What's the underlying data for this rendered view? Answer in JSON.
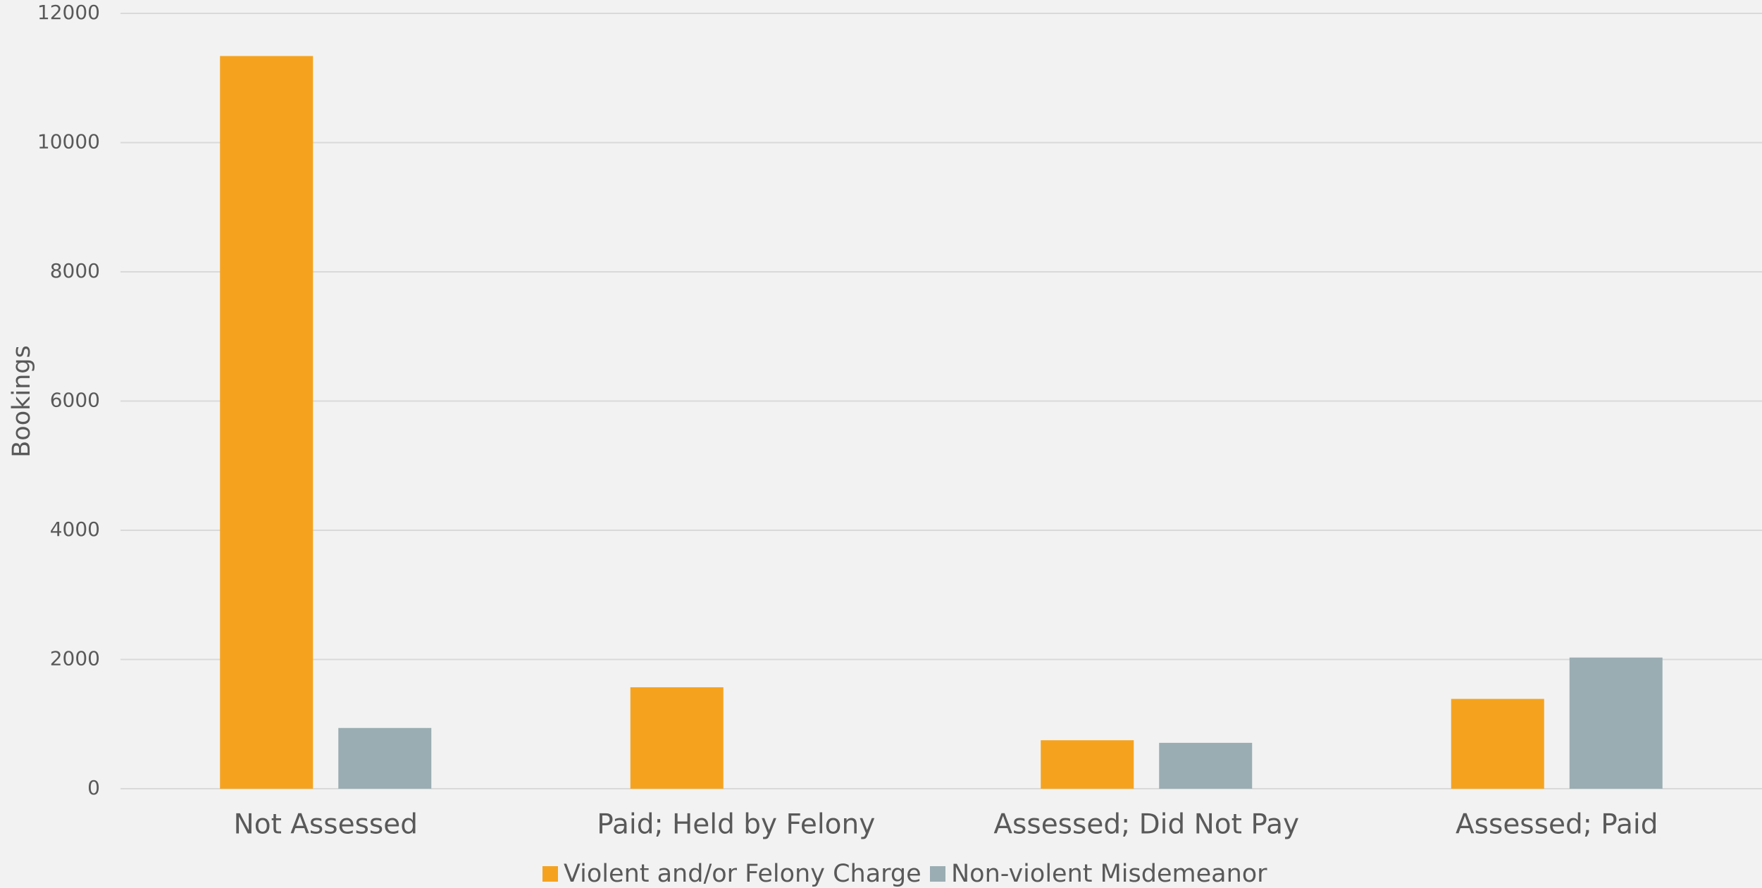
{
  "chart_data": {
    "type": "bar",
    "y_label": "Bookings",
    "categories": [
      "Not Assessed",
      "Paid; Held by Felony",
      "Assessed; Did Not Pay",
      "Assessed; Paid"
    ],
    "series": [
      {
        "name": "Violent and/or Felony Charge",
        "color": "#f5a31f",
        "values": [
          11340,
          1570,
          750,
          1390
        ]
      },
      {
        "name": "Non-violent Misdemeanor",
        "color": "#9aadb2",
        "values": [
          940,
          0,
          710,
          2030
        ]
      }
    ],
    "ylim": [
      0,
      12000
    ],
    "yticks": [
      0,
      2000,
      4000,
      6000,
      8000,
      10000,
      12000
    ],
    "grid": true,
    "legend": "bottom"
  }
}
